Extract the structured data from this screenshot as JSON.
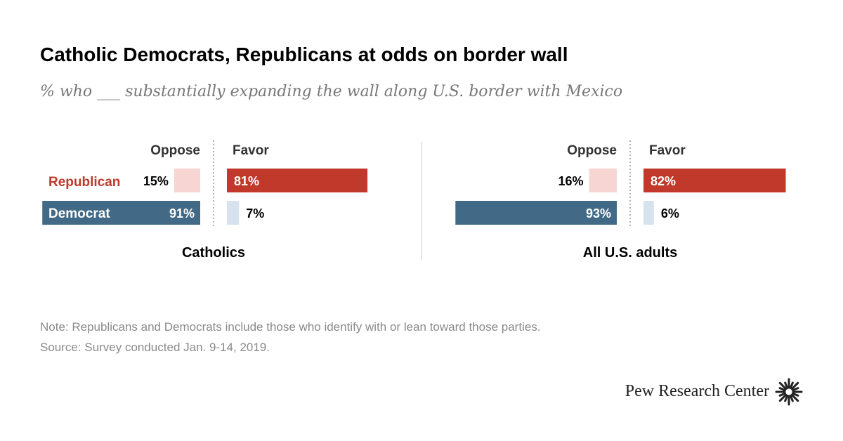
{
  "title": "Catholic Democrats, Republicans at odds on border wall",
  "subtitle": "% who ___ substantially expanding the wall along U.S. border with Mexico",
  "note": "Note: Republicans and Democrats include those who identify with or lean toward those parties.",
  "source": "Source: Survey conducted Jan. 9-14, 2019.",
  "brand": "Pew Research Center",
  "colors": {
    "republican_favor": "#c0392b",
    "republican_oppose": "#f6d5d2",
    "democrat_oppose": "#426a86",
    "democrat_favor": "#d6e3ee",
    "republican_label": "#c0392b"
  },
  "chart_data": [
    {
      "type": "bar",
      "title": "Catholics",
      "columns": [
        "Oppose",
        "Favor"
      ],
      "categories": [
        "Republican",
        "Democrat"
      ],
      "series": [
        {
          "name": "Oppose",
          "values": [
            15,
            91
          ],
          "labels": [
            "15%",
            "91%"
          ]
        },
        {
          "name": "Favor",
          "values": [
            81,
            7
          ],
          "labels": [
            "81%",
            "7%"
          ]
        }
      ]
    },
    {
      "type": "bar",
      "title": "All U.S. adults",
      "columns": [
        "Oppose",
        "Favor"
      ],
      "categories": [
        "Republican",
        "Democrat"
      ],
      "series": [
        {
          "name": "Oppose",
          "values": [
            16,
            93
          ],
          "labels": [
            "16%",
            "93%"
          ]
        },
        {
          "name": "Favor",
          "values": [
            82,
            6
          ],
          "labels": [
            "82%",
            "6%"
          ]
        }
      ]
    }
  ]
}
